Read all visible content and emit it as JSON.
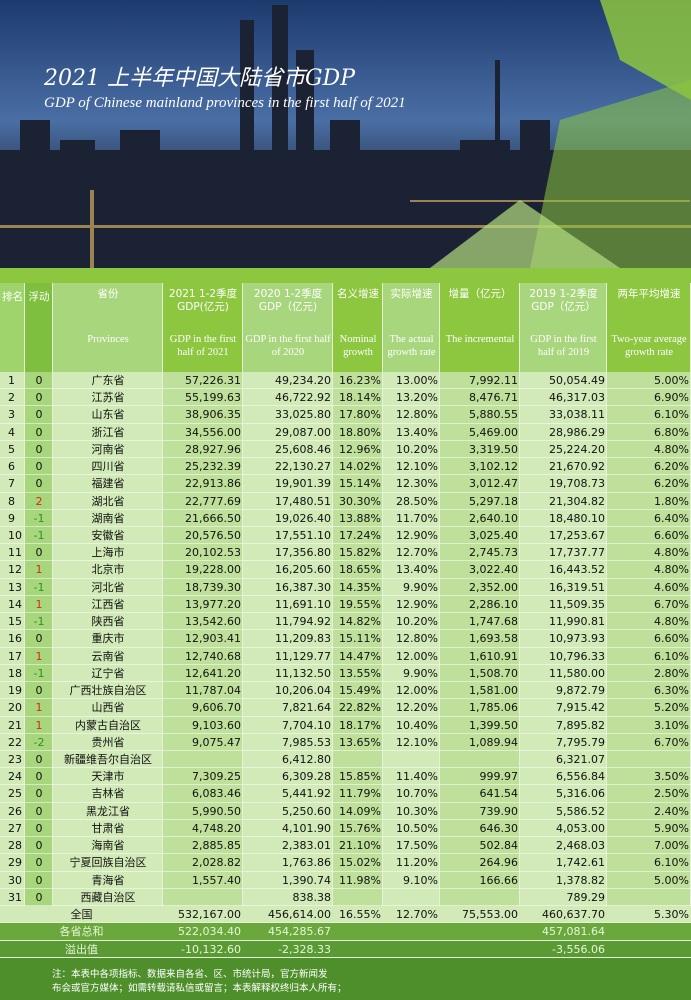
{
  "header": {
    "title": "2021 上半年中国大陆省市GDP",
    "subtitle": "GDP of Chinese mainland provinces in the first half of 2021"
  },
  "table": {
    "columns": [
      {
        "zh": "排名",
        "en": null
      },
      {
        "zh": "浮动",
        "en": null
      },
      {
        "zh": "省份",
        "en": "Provinces"
      },
      {
        "zh": "2021  1-2季度 GDP(亿元)",
        "en": "GDP in the first half of 2021"
      },
      {
        "zh": "2020  1-2季度 GDP（亿元)",
        "en": "GDP in the first half of 2020"
      },
      {
        "zh": "名义增速",
        "en": "Nominal growth"
      },
      {
        "zh": "实际增速",
        "en": "The actual growth rate"
      },
      {
        "zh": "增量（亿元）",
        "en": "The incremental"
      },
      {
        "zh": "2019  1-2季度 GDP（亿元）",
        "en": "GDP in the first half of 2019"
      },
      {
        "zh": "两年平均增速",
        "en": "Two-year average growth rate"
      }
    ],
    "rows": [
      [
        1,
        0,
        "广东省",
        "57,226.31",
        "49,234.20",
        "16.23%",
        "13.00%",
        "7,992.11",
        "50,054.49",
        "5.00%"
      ],
      [
        2,
        0,
        "江苏省",
        "55,199.63",
        "46,722.92",
        "18.14%",
        "13.20%",
        "8,476.71",
        "46,317.03",
        "6.90%"
      ],
      [
        3,
        0,
        "山东省",
        "38,906.35",
        "33,025.80",
        "17.80%",
        "12.80%",
        "5,880.55",
        "33,038.11",
        "6.10%"
      ],
      [
        4,
        0,
        "浙江省",
        "34,556.00",
        "29,087.00",
        "18.80%",
        "13.40%",
        "5,469.00",
        "28,986.29",
        "6.80%"
      ],
      [
        5,
        0,
        "河南省",
        "28,927.96",
        "25,608.46",
        "12.96%",
        "10.20%",
        "3,319.50",
        "25,224.20",
        "4.80%"
      ],
      [
        6,
        0,
        "四川省",
        "25,232.39",
        "22,130.27",
        "14.02%",
        "12.10%",
        "3,102.12",
        "21,670.92",
        "6.20%"
      ],
      [
        7,
        0,
        "福建省",
        "22,913.86",
        "19,901.39",
        "15.14%",
        "12.30%",
        "3,012.47",
        "19,708.73",
        "6.20%"
      ],
      [
        8,
        2,
        "湖北省",
        "22,777.69",
        "17,480.51",
        "30.30%",
        "28.50%",
        "5,297.18",
        "21,304.82",
        "1.80%"
      ],
      [
        9,
        -1,
        "湖南省",
        "21,666.50",
        "19,026.40",
        "13.88%",
        "11.70%",
        "2,640.10",
        "18,480.10",
        "6.40%"
      ],
      [
        10,
        -1,
        "安徽省",
        "20,576.50",
        "17,551.10",
        "17.24%",
        "12.90%",
        "3,025.40",
        "17,253.67",
        "6.60%"
      ],
      [
        11,
        0,
        "上海市",
        "20,102.53",
        "17,356.80",
        "15.82%",
        "12.70%",
        "2,745.73",
        "17,737.77",
        "4.80%"
      ],
      [
        12,
        1,
        "北京市",
        "19,228.00",
        "16,205.60",
        "18.65%",
        "13.40%",
        "3,022.40",
        "16,443.52",
        "4.80%"
      ],
      [
        13,
        -1,
        "河北省",
        "18,739.30",
        "16,387.30",
        "14.35%",
        "9.90%",
        "2,352.00",
        "16,319.51",
        "4.60%"
      ],
      [
        14,
        1,
        "江西省",
        "13,977.20",
        "11,691.10",
        "19.55%",
        "12.90%",
        "2,286.10",
        "11,509.35",
        "6.70%"
      ],
      [
        15,
        -1,
        "陕西省",
        "13,542.60",
        "11,794.92",
        "14.82%",
        "10.20%",
        "1,747.68",
        "11,990.81",
        "4.80%"
      ],
      [
        16,
        0,
        "重庆市",
        "12,903.41",
        "11,209.83",
        "15.11%",
        "12.80%",
        "1,693.58",
        "10,973.93",
        "6.60%"
      ],
      [
        17,
        1,
        "云南省",
        "12,740.68",
        "11,129.77",
        "14.47%",
        "12.00%",
        "1,610.91",
        "10,796.33",
        "6.10%"
      ],
      [
        18,
        -1,
        "辽宁省",
        "12,641.20",
        "11,132.50",
        "13.55%",
        "9.90%",
        "1,508.70",
        "11,580.00",
        "2.80%"
      ],
      [
        19,
        0,
        "广西壮族自治区",
        "11,787.04",
        "10,206.04",
        "15.49%",
        "12.00%",
        "1,581.00",
        "9,872.79",
        "6.30%"
      ],
      [
        20,
        1,
        "山西省",
        "9,606.70",
        "7,821.64",
        "22.82%",
        "12.20%",
        "1,785.06",
        "7,915.42",
        "5.20%"
      ],
      [
        21,
        1,
        "内蒙古自治区",
        "9,103.60",
        "7,704.10",
        "18.17%",
        "10.40%",
        "1,399.50",
        "7,895.82",
        "3.10%"
      ],
      [
        22,
        -2,
        "贵州省",
        "9,075.47",
        "7,985.53",
        "13.65%",
        "12.10%",
        "1,089.94",
        "7,795.79",
        "6.70%"
      ],
      [
        23,
        0,
        "新疆维吾尔自治区",
        null,
        "6,412.80",
        null,
        null,
        null,
        "6,321.07",
        null
      ],
      [
        24,
        0,
        "天津市",
        "7,309.25",
        "6,309.28",
        "15.85%",
        "11.40%",
        "999.97",
        "6,556.84",
        "3.50%"
      ],
      [
        25,
        0,
        "吉林省",
        "6,083.46",
        "5,441.92",
        "11.79%",
        "10.70%",
        "641.54",
        "5,316.06",
        "2.50%"
      ],
      [
        26,
        0,
        "黑龙江省",
        "5,990.50",
        "5,250.60",
        "14.09%",
        "10.30%",
        "739.90",
        "5,586.52",
        "2.40%"
      ],
      [
        27,
        0,
        "甘肃省",
        "4,748.20",
        "4,101.90",
        "15.76%",
        "10.50%",
        "646.30",
        "4,053.00",
        "5.90%"
      ],
      [
        28,
        0,
        "海南省",
        "2,885.85",
        "2,383.01",
        "21.10%",
        "17.50%",
        "502.84",
        "2,468.03",
        "7.00%"
      ],
      [
        29,
        0,
        "宁夏回族自治区",
        "2,028.82",
        "1,763.86",
        "15.02%",
        "11.20%",
        "264.96",
        "1,742.61",
        "6.10%"
      ],
      [
        30,
        0,
        "青海省",
        "1,557.40",
        "1,390.74",
        "11.98%",
        "9.10%",
        "166.66",
        "1,378.82",
        "5.00%"
      ],
      [
        31,
        0,
        "西藏自治区",
        null,
        "838.38",
        null,
        null,
        null,
        "789.29",
        null
      ]
    ],
    "totals": [
      {
        "label": "全国",
        "cells": [
          "532,167.00",
          "456,614.00",
          "16.55%",
          "12.70%",
          "75,553.00",
          "460,637.70",
          "5.30%"
        ]
      },
      {
        "label": "各省总和",
        "cells": [
          "522,034.40",
          "454,285.67",
          null,
          null,
          null,
          "457,081.64",
          null
        ]
      },
      {
        "label": "溢出值",
        "cells": [
          "-10,132.60",
          "-2,328.33",
          null,
          null,
          null,
          "-3,556.06",
          null
        ]
      }
    ]
  },
  "footer": {
    "lines": [
      "注：本表中各项指标、数据来自各省、区、市统计局，官方新闻发",
      "布会或官方媒体；如需转载请私信或留言；本表解释权终归本人所有；"
    ]
  }
}
